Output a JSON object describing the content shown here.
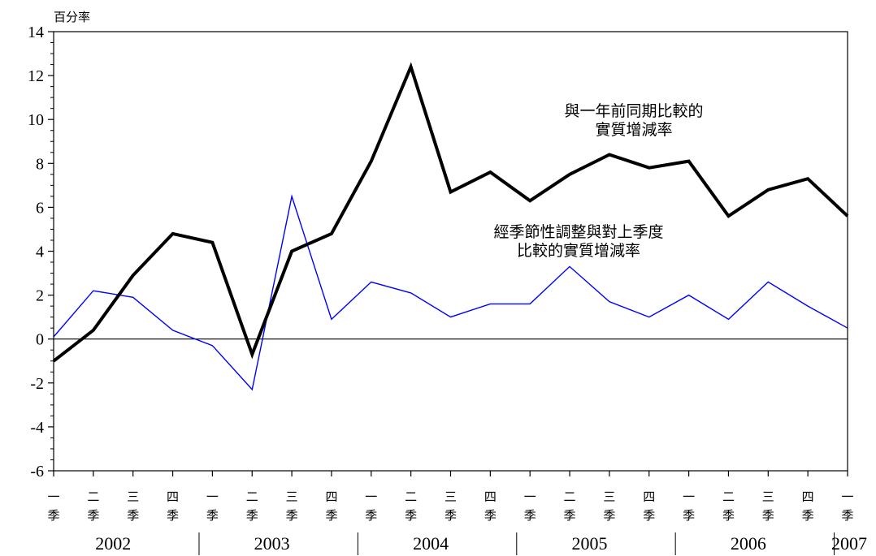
{
  "chart_data": {
    "type": "line",
    "ylabel": "百分率",
    "ylim": [
      -6,
      14
    ],
    "y_ticks": [
      -6,
      -4,
      -2,
      0,
      2,
      4,
      6,
      8,
      10,
      12,
      14
    ],
    "grid": false,
    "quarter_labels": [
      [
        "一",
        "季"
      ],
      [
        "二",
        "季"
      ],
      [
        "三",
        "季"
      ],
      [
        "四",
        "季"
      ],
      [
        "一",
        "季"
      ],
      [
        "二",
        "季"
      ],
      [
        "三",
        "季"
      ],
      [
        "四",
        "季"
      ],
      [
        "一",
        "季"
      ],
      [
        "二",
        "季"
      ],
      [
        "三",
        "季"
      ],
      [
        "四",
        "季"
      ],
      [
        "一",
        "季"
      ],
      [
        "二",
        "季"
      ],
      [
        "三",
        "季"
      ],
      [
        "四",
        "季"
      ],
      [
        "一",
        "季"
      ],
      [
        "二",
        "季"
      ],
      [
        "三",
        "季"
      ],
      [
        "四",
        "季"
      ],
      [
        "一",
        "季"
      ]
    ],
    "years": [
      {
        "label": "2002",
        "quarters": 4
      },
      {
        "label": "2003",
        "quarters": 4
      },
      {
        "label": "2004",
        "quarters": 4
      },
      {
        "label": "2005",
        "quarters": 4
      },
      {
        "label": "2006",
        "quarters": 4
      },
      {
        "label": "2007",
        "quarters": 1
      }
    ],
    "series": [
      {
        "name": "與一年前同期比較的實質增減率",
        "color": "#000000",
        "values": [
          -1.0,
          0.4,
          2.9,
          4.8,
          4.4,
          -0.7,
          4.0,
          4.8,
          8.1,
          12.4,
          6.7,
          7.6,
          6.3,
          7.5,
          8.4,
          7.8,
          8.1,
          5.6,
          6.8,
          7.3,
          5.6
        ]
      },
      {
        "name": "經季節性調整與對上季度比較的實質增減率",
        "color": "#0000ff",
        "values": [
          0.1,
          2.2,
          1.9,
          0.4,
          -0.3,
          -2.3,
          6.5,
          0.9,
          2.6,
          2.1,
          1.0,
          1.6,
          1.6,
          3.3,
          1.7,
          1.0,
          2.0,
          0.9,
          2.6,
          1.5,
          0.5
        ]
      }
    ],
    "annotations": [
      {
        "series": 0,
        "lines": [
          "與一年前同期比較的",
          "實質增減率"
        ]
      },
      {
        "series": 1,
        "lines": [
          "經季節性調整與對上季度",
          "比較的實質增減率"
        ]
      }
    ]
  }
}
